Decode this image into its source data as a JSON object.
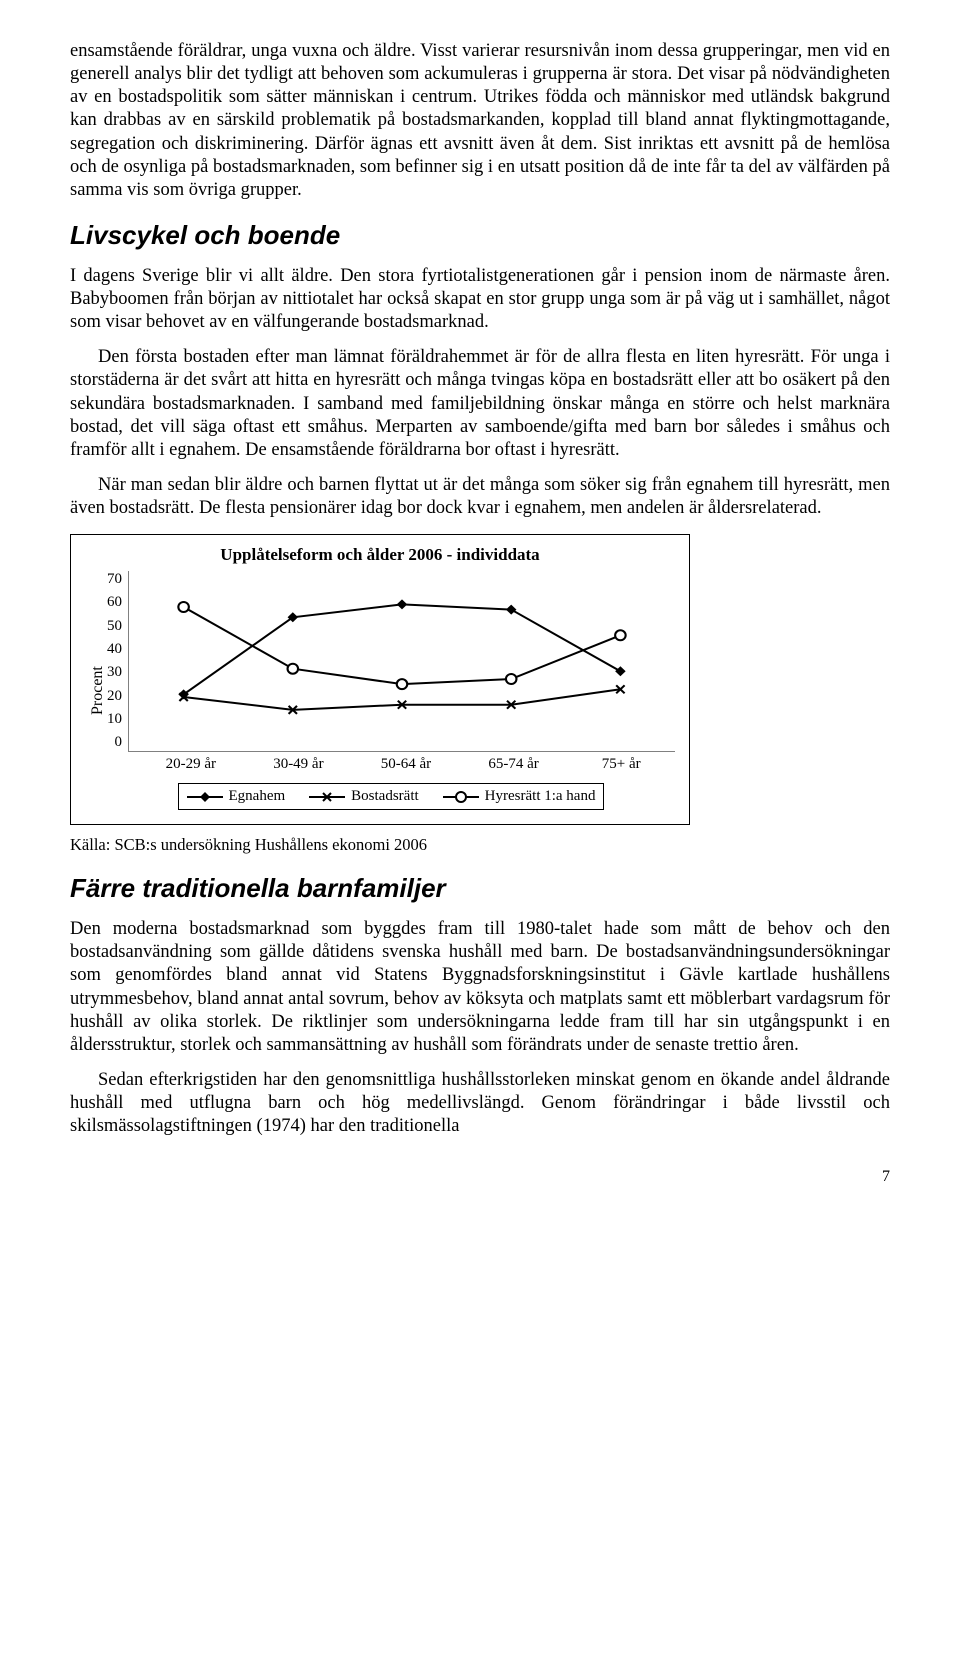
{
  "paragraphs": {
    "p1": "ensamstående föräldrar, unga vuxna och äldre. Visst varierar resursnivån inom dessa grupperingar, men vid en generell analys blir det tydligt att behoven som ackumuleras i grupperna är stora. Det visar på nödvändigheten av en bostadspolitik som sätter människan i centrum. Utrikes födda och människor med utländsk bakgrund kan drabbas av en särskild problematik på bostadsmarkanden, kopplad till bland annat flyktingmottagande, segregation och diskriminering. Därför ägnas ett avsnitt även åt dem. Sist inriktas ett avsnitt på de hemlösa och de osynliga på bostadsmarknaden, som befinner sig i en utsatt position då de inte får ta del av välfärden på samma vis som övriga grupper.",
    "h2a": "Livscykel och boende",
    "p2": "I dagens Sverige blir vi allt äldre. Den stora fyrtiotalistgenerationen går i pension inom de närmaste åren. Babyboomen från början av nittiotalet har också skapat en stor grupp unga som är på väg ut i samhället, något som visar behovet av en välfungerande bostadsmarknad.",
    "p3": "Den första bostaden efter man lämnat föräldrahemmet är för de allra flesta en liten hyresrätt. För unga i storstäderna är det svårt att hitta en hyresrätt och många tvingas köpa en bostadsrätt eller att bo osäkert på den sekundära bostadsmarknaden. I samband med familjebildning önskar många en större och helst marknära bostad, det vill säga oftast ett småhus. Merparten av samboende/gifta med barn bor således i småhus och framför allt i egnahem. De ensamstående föräldrarna bor oftast i hyresrätt.",
    "p4": "När man sedan blir äldre och barnen flyttat ut är det många som söker sig från egnahem till hyresrätt, men även bostadsrätt. De flesta pensionärer idag bor dock kvar i egnahem, men andelen är åldersrelaterad.",
    "source": "Källa: SCB:s undersökning Hushållens ekonomi 2006",
    "h2b": "Färre traditionella barnfamiljer",
    "p5": "Den moderna bostadsmarknad som byggdes fram till 1980-talet hade som mått de behov och den bostadsanvändning som gällde dåtidens svenska hushåll med barn. De bostadsanvändningsundersökningar som genomfördes bland annat vid Statens Byggnadsforskningsinstitut i Gävle kartlade hushållens utrymmesbehov, bland annat antal sovrum, behov av köksyta och matplats samt ett möblerbart vardagsrum för hushåll av olika storlek. De riktlinjer som undersökningarna ledde fram till har sin utgångspunkt i en åldersstruktur, storlek och sammansättning av hushåll som förändrats under de senaste trettio åren.",
    "p6": "Sedan efterkrigstiden har den genomsnittliga hushållsstorleken minskat genom en ökande andel åldrande hushåll med utflugna barn och hög medellivslängd. Genom förändringar i både livsstil och skilsmässolagstiftningen (1974) har den traditionella"
  },
  "chart": {
    "title": "Upplåtelseform och ålder 2006 - individdata",
    "ylabel": "Procent",
    "ylim": [
      0,
      70
    ],
    "ytick_step": 10,
    "categories": [
      "20-29 år",
      "30-49 år",
      "50-64 år",
      "65-74 år",
      "75+ år"
    ],
    "series": [
      {
        "name": "Egnahem",
        "marker": "diamond",
        "values": [
          22,
          52,
          57,
          55,
          31
        ]
      },
      {
        "name": "Bostadsrätt",
        "marker": "x",
        "values": [
          21,
          16,
          18,
          18,
          24
        ]
      },
      {
        "name": "Hyresrätt 1:a hand",
        "marker": "circle",
        "values": [
          56,
          32,
          26,
          28,
          45
        ]
      }
    ],
    "line_color": "#000000",
    "line_width": 2,
    "marker_size": 8,
    "axis_color": "#808080",
    "frame_border": "#000000",
    "background": "#ffffff",
    "title_fontsize": 17,
    "label_fontsize": 15
  },
  "page_number": "7"
}
